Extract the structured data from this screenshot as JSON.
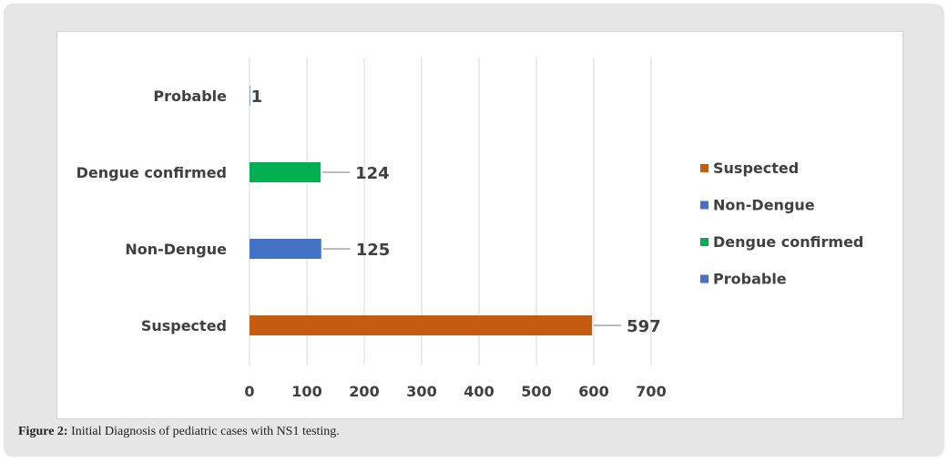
{
  "caption": {
    "label": "Figure 2:",
    "text": " Initial Diagnosis of pediatric cases with NS1 testing."
  },
  "chart_data": {
    "type": "bar",
    "orientation": "horizontal",
    "categories": [
      "Suspected",
      "Non-Dengue",
      "Dengue confirmed",
      "Probable"
    ],
    "values": [
      597,
      125,
      124,
      1
    ],
    "colors": [
      "#c55a11",
      "#4472c4",
      "#00b050",
      "#4472c4"
    ],
    "xlim": [
      0,
      700
    ],
    "xticks": [
      0,
      100,
      200,
      300,
      400,
      500,
      600,
      700
    ],
    "grid": true,
    "legend": {
      "position": "right",
      "entries": [
        {
          "name": "Suspected",
          "color": "#c55a11"
        },
        {
          "name": "Non-Dengue",
          "color": "#4472c4"
        },
        {
          "name": "Dengue confirmed",
          "color": "#00b050"
        },
        {
          "name": "Probable",
          "color": "#4472c4"
        }
      ]
    }
  }
}
